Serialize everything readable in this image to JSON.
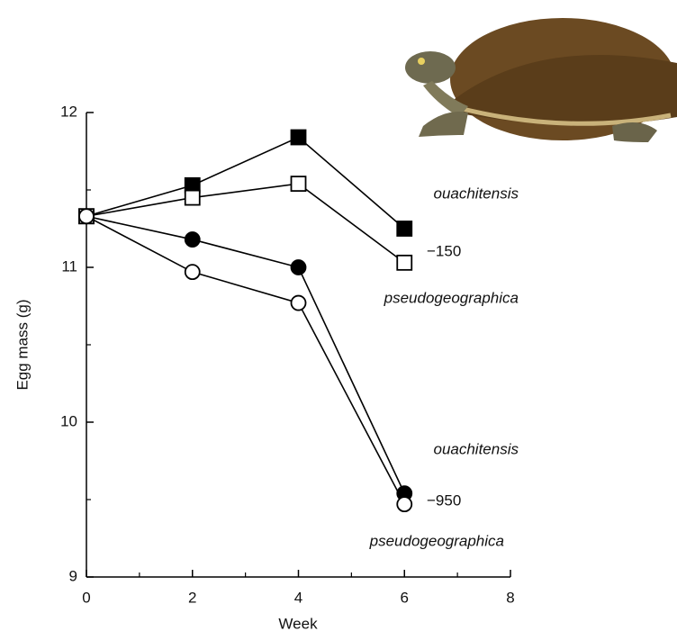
{
  "chart_data": {
    "type": "line",
    "x_label": "Week",
    "y_label": "Egg mass (g)",
    "x": [
      0,
      2,
      4,
      6
    ],
    "series": [
      {
        "name": "ouachitensis",
        "color": "#000000",
        "marker": "square",
        "filled": true,
        "values": [
          11.33,
          11.53,
          11.84,
          11.25
        ]
      },
      {
        "name": "pseudogeographica",
        "color": "#000000",
        "marker": "square",
        "filled": false,
        "values": [
          11.33,
          11.45,
          11.54,
          11.03
        ]
      },
      {
        "name": "ouachitensis",
        "color": "#000000",
        "marker": "circle",
        "filled": true,
        "values": [
          11.33,
          11.18,
          11.0,
          9.54
        ]
      },
      {
        "name": "pseudogeographica",
        "color": "#000000",
        "marker": "circle",
        "filled": false,
        "values": [
          11.33,
          10.97,
          10.77,
          9.47
        ]
      }
    ],
    "annotations": [
      "−150",
      "−950"
    ],
    "xlim": [
      0,
      8
    ],
    "xticks": [
      0,
      2,
      4,
      6,
      8
    ],
    "xminorticks": [
      1,
      3,
      5,
      7
    ],
    "ylim": [
      9,
      12
    ],
    "yticks": [
      9,
      10,
      11,
      12
    ],
    "yminorticks": [
      9.5,
      10.5,
      11.5
    ]
  }
}
